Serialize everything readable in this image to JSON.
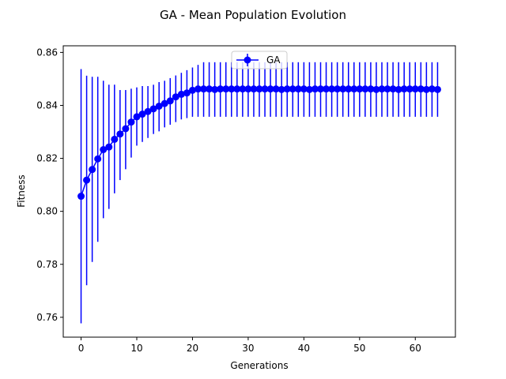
{
  "chart_data": {
    "type": "line",
    "title": "GA - Mean Population Evolution",
    "xlabel": "Generations",
    "ylabel": "Fitness",
    "xlim": [
      -3.2,
      67.2
    ],
    "ylim": [
      0.7525,
      0.8625
    ],
    "xticks": [
      0,
      10,
      20,
      30,
      40,
      50,
      60
    ],
    "xtick_labels": [
      "0",
      "10",
      "20",
      "30",
      "40",
      "50",
      "60"
    ],
    "yticks": [
      0.76,
      0.78,
      0.8,
      0.82,
      0.84,
      0.86
    ],
    "ytick_labels": [
      "0.76",
      "0.78",
      "0.80",
      "0.82",
      "0.84",
      "0.86"
    ],
    "grid": false,
    "legend_position": "upper center",
    "colors": {
      "series": "#0000ff"
    },
    "series": [
      {
        "name": "GA",
        "style": "line-markers-errorbars",
        "x": [
          0,
          1,
          2,
          3,
          4,
          5,
          6,
          7,
          8,
          9,
          10,
          11,
          12,
          13,
          14,
          15,
          16,
          17,
          18,
          19,
          20,
          21,
          22,
          23,
          24,
          25,
          26,
          27,
          28,
          29,
          30,
          31,
          32,
          33,
          34,
          35,
          36,
          37,
          38,
          39,
          40,
          41,
          42,
          43,
          44,
          45,
          46,
          47,
          48,
          49,
          50,
          51,
          52,
          53,
          54,
          55,
          56,
          57,
          58,
          59,
          60,
          61,
          62,
          63,
          64
        ],
        "y": [
          0.8057,
          0.8118,
          0.8158,
          0.8198,
          0.8233,
          0.8243,
          0.8272,
          0.8292,
          0.8312,
          0.8337,
          0.8357,
          0.8367,
          0.8377,
          0.8387,
          0.8397,
          0.8407,
          0.8417,
          0.8432,
          0.8442,
          0.8447,
          0.8457,
          0.8462,
          0.8462,
          0.8462,
          0.846,
          0.8462,
          0.8462,
          0.8462,
          0.8462,
          0.8462,
          0.8462,
          0.8462,
          0.8462,
          0.8462,
          0.8462,
          0.8462,
          0.846,
          0.8462,
          0.8462,
          0.8462,
          0.8462,
          0.846,
          0.8462,
          0.8462,
          0.8462,
          0.8462,
          0.8462,
          0.8462,
          0.8462,
          0.8462,
          0.8462,
          0.8462,
          0.8462,
          0.846,
          0.8462,
          0.8462,
          0.8462,
          0.846,
          0.8462,
          0.8462,
          0.8462,
          0.8462,
          0.846,
          0.8462,
          0.846
        ],
        "err_low": [
          0.7577,
          0.7721,
          0.7809,
          0.7885,
          0.7974,
          0.8009,
          0.8068,
          0.8118,
          0.8159,
          0.8203,
          0.8248,
          0.8262,
          0.8277,
          0.8292,
          0.8302,
          0.8317,
          0.8327,
          0.8337,
          0.8347,
          0.8352,
          0.8357,
          0.8357,
          0.8357,
          0.8357,
          0.8357,
          0.8357,
          0.8357,
          0.8357,
          0.8357,
          0.8357,
          0.8357,
          0.8357,
          0.8357,
          0.8357,
          0.8357,
          0.8357,
          0.8357,
          0.8357,
          0.8357,
          0.8357,
          0.8357,
          0.8357,
          0.8357,
          0.8357,
          0.8357,
          0.8357,
          0.8357,
          0.8357,
          0.8357,
          0.8357,
          0.8357,
          0.8357,
          0.8357,
          0.8357,
          0.8357,
          0.8357,
          0.8357,
          0.8357,
          0.8357,
          0.8357,
          0.8357,
          0.8357,
          0.8357,
          0.8357,
          0.8357
        ],
        "err_high": [
          0.8537,
          0.8512,
          0.8508,
          0.8508,
          0.8493,
          0.8478,
          0.8478,
          0.8458,
          0.8458,
          0.8463,
          0.8468,
          0.8473,
          0.8473,
          0.8478,
          0.8488,
          0.8493,
          0.8503,
          0.8513,
          0.8523,
          0.8533,
          0.8543,
          0.8553,
          0.8563,
          0.8563,
          0.8563,
          0.8563,
          0.8563,
          0.8563,
          0.8563,
          0.8563,
          0.8563,
          0.8563,
          0.8563,
          0.8563,
          0.8563,
          0.8563,
          0.8563,
          0.8563,
          0.8563,
          0.8563,
          0.8563,
          0.8563,
          0.8563,
          0.8563,
          0.8563,
          0.8563,
          0.8563,
          0.8563,
          0.8563,
          0.8563,
          0.8563,
          0.8563,
          0.8563,
          0.8563,
          0.8563,
          0.8563,
          0.8563,
          0.8563,
          0.8563,
          0.8563,
          0.8563,
          0.8563,
          0.8563,
          0.8563,
          0.8563
        ]
      }
    ]
  }
}
